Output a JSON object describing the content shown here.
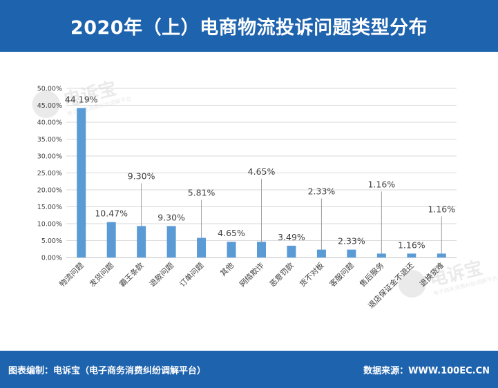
{
  "header": {
    "title": "2020年（上）电商物流投诉问题类型分布"
  },
  "footer": {
    "left": "图表编制：电诉宝（电子商务消费纠纷调解平台）",
    "right": "数据来源：WWW.100EC.CN"
  },
  "watermark": {
    "brand": "电诉宝",
    "tagline": "电子商务消费纠纷调解平台"
  },
  "colors": {
    "header_bg": "#1e63ad",
    "bar": "#5b9bd5",
    "grid": "#d9d9d9",
    "text": "#404040"
  },
  "chart_data": {
    "type": "bar",
    "categories": [
      "物流问题",
      "发货问题",
      "霸王条款",
      "退款问题",
      "订单问题",
      "其他",
      "网络欺诈",
      "恶意罚款",
      "货不对板",
      "客服问题",
      "售后服务",
      "退店保证金不退还",
      "退换货难"
    ],
    "values": [
      44.19,
      10.47,
      9.3,
      9.3,
      5.81,
      4.65,
      4.65,
      3.49,
      2.33,
      2.33,
      1.16,
      1.16,
      1.16
    ],
    "value_labels": [
      "44.19%",
      "10.47%",
      "9.30%",
      "9.30%",
      "5.81%",
      "4.65%",
      "4.65%",
      "3.49%",
      "2.33%",
      "2.33%",
      "1.16%",
      "1.16%",
      "1.16%"
    ],
    "y_ticks": [
      "0.00%",
      "5.00%",
      "10.00%",
      "15.00%",
      "20.00%",
      "25.00%",
      "30.00%",
      "35.00%",
      "40.00%",
      "45.00%",
      "50.00%"
    ],
    "ylim": [
      0,
      50
    ],
    "grid": true,
    "title": "",
    "xlabel": "",
    "ylabel": ""
  }
}
